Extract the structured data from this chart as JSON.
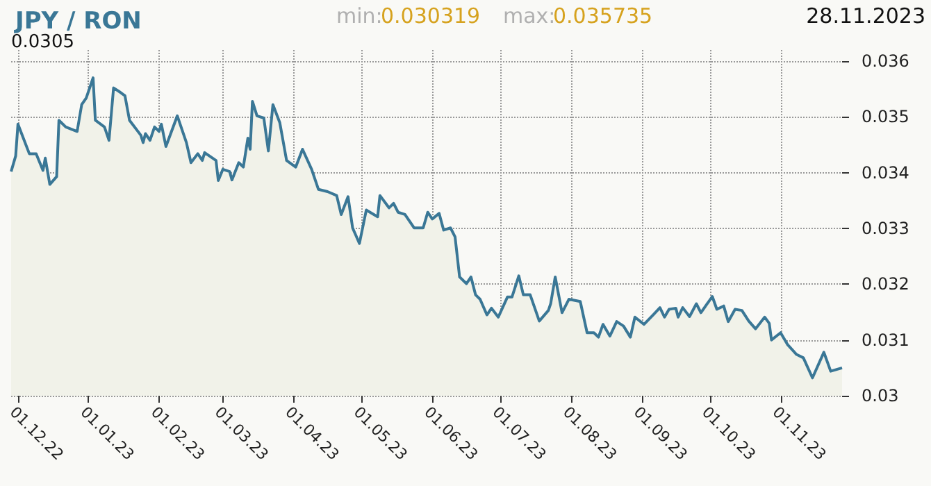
{
  "chart_data": {
    "type": "area",
    "title": "JPY / RON",
    "annotations": [
      "min:",
      "0.030319",
      "max:",
      "0.035735",
      "28.11.2023",
      "0.0305"
    ],
    "x": [
      "2022-11-28",
      "2022-11-30",
      "2022-12-01",
      "2022-12-06",
      "2022-12-09",
      "2022-12-12",
      "2022-12-13",
      "2022-12-15",
      "2022-12-18",
      "2022-12-19",
      "2022-12-22",
      "2022-12-27",
      "2022-12-29",
      "2022-12-31",
      "2023-01-03",
      "2023-01-04",
      "2023-01-08",
      "2023-01-10",
      "2023-01-12",
      "2023-01-15",
      "2023-01-17",
      "2023-01-19",
      "2023-01-24",
      "2023-01-25",
      "2023-01-26",
      "2023-01-28",
      "2023-01-30",
      "2023-02-01",
      "2023-02-02",
      "2023-02-04",
      "2023-02-09",
      "2023-02-13",
      "2023-02-15",
      "2023-02-18",
      "2023-02-20",
      "2023-02-21",
      "2023-02-26",
      "2023-02-27",
      "2023-03-01",
      "2023-03-04",
      "2023-03-05",
      "2023-03-08",
      "2023-03-10",
      "2023-03-12",
      "2023-03-13",
      "2023-03-14",
      "2023-03-16",
      "2023-03-19",
      "2023-03-21",
      "2023-03-23",
      "2023-03-26",
      "2023-03-29",
      "2023-04-02",
      "2023-04-05",
      "2023-04-09",
      "2023-04-12",
      "2023-04-16",
      "2023-04-20",
      "2023-04-22",
      "2023-04-25",
      "2023-04-27",
      "2023-04-30",
      "2023-05-03",
      "2023-05-08",
      "2023-05-09",
      "2023-05-13",
      "2023-05-15",
      "2023-05-17",
      "2023-05-20",
      "2023-05-24",
      "2023-05-28",
      "2023-05-30",
      "2023-06-01",
      "2023-06-04",
      "2023-06-06",
      "2023-06-09",
      "2023-06-11",
      "2023-06-13",
      "2023-06-16",
      "2023-06-18",
      "2023-06-20",
      "2023-06-22",
      "2023-06-25",
      "2023-06-27",
      "2023-06-30",
      "2023-07-04",
      "2023-07-06",
      "2023-07-09",
      "2023-07-11",
      "2023-07-14",
      "2023-07-18",
      "2023-07-22",
      "2023-07-23",
      "2023-07-25",
      "2023-07-28",
      "2023-07-31",
      "2023-08-05",
      "2023-08-08",
      "2023-08-11",
      "2023-08-13",
      "2023-08-15",
      "2023-08-18",
      "2023-08-21",
      "2023-08-24",
      "2023-08-27",
      "2023-08-29",
      "2023-09-02",
      "2023-09-06",
      "2023-09-09",
      "2023-09-11",
      "2023-09-13",
      "2023-09-16",
      "2023-09-17",
      "2023-09-19",
      "2023-09-22",
      "2023-09-25",
      "2023-09-27",
      "2023-10-02",
      "2023-10-04",
      "2023-10-07",
      "2023-10-09",
      "2023-10-12",
      "2023-10-15",
      "2023-10-18",
      "2023-10-21",
      "2023-10-25",
      "2023-10-27",
      "2023-10-28",
      "2023-11-01",
      "2023-11-04",
      "2023-11-08",
      "2023-11-11",
      "2023-11-15",
      "2023-11-20",
      "2023-11-23",
      "2023-11-28"
    ],
    "series": [
      {
        "color": "#3a7796",
        "values": [
          0.03402,
          0.0343,
          0.03487,
          0.03434,
          0.03434,
          0.03404,
          0.03426,
          0.03379,
          0.03393,
          0.03494,
          0.03482,
          0.03474,
          0.03522,
          0.03534,
          0.0357,
          0.03494,
          0.03482,
          0.03458,
          0.03552,
          0.03544,
          0.03538,
          0.03494,
          0.03467,
          0.03454,
          0.0347,
          0.03458,
          0.03482,
          0.03474,
          0.03487,
          0.03447,
          0.03502,
          0.03454,
          0.03418,
          0.03434,
          0.03422,
          0.03436,
          0.03422,
          0.03386,
          0.03406,
          0.03402,
          0.03387,
          0.03418,
          0.0341,
          0.03462,
          0.03442,
          0.03528,
          0.03502,
          0.03498,
          0.03439,
          0.03522,
          0.0349,
          0.03422,
          0.0341,
          0.03442,
          0.03406,
          0.0337,
          0.03366,
          0.03359,
          0.03325,
          0.03357,
          0.03301,
          0.03273,
          0.03333,
          0.03321,
          0.03359,
          0.03337,
          0.03345,
          0.03329,
          0.03325,
          0.03301,
          0.03301,
          0.03329,
          0.03317,
          0.03327,
          0.03297,
          0.03301,
          0.03285,
          0.03213,
          0.03201,
          0.03213,
          0.03181,
          0.03173,
          0.03145,
          0.03157,
          0.03141,
          0.03177,
          0.03177,
          0.03215,
          0.03181,
          0.03181,
          0.03134,
          0.03153,
          0.03165,
          0.03213,
          0.03149,
          0.03173,
          0.03169,
          0.03113,
          0.03113,
          0.03105,
          0.03128,
          0.03107,
          0.03133,
          0.03125,
          0.03105,
          0.03141,
          0.03128,
          0.03145,
          0.03158,
          0.03141,
          0.03155,
          0.03157,
          0.03141,
          0.03158,
          0.03142,
          0.03165,
          0.03149,
          0.03178,
          0.03155,
          0.03161,
          0.03133,
          0.03155,
          0.03153,
          0.03134,
          0.0312,
          0.03141,
          0.0313,
          0.031,
          0.03113,
          0.03092,
          0.03074,
          0.03068,
          0.03032,
          0.03078,
          0.03044,
          0.0305
        ]
      }
    ],
    "xlim": [
      "2022-11-28",
      "2023-11-28"
    ],
    "xticks": [
      {
        "value": "2022-12-01",
        "label": "01.12.22"
      },
      {
        "value": "2023-01-01",
        "label": "01.01.23"
      },
      {
        "value": "2023-02-01",
        "label": "01.02.23"
      },
      {
        "value": "2023-03-01",
        "label": "01.03.23"
      },
      {
        "value": "2023-04-01",
        "label": "01.04.23"
      },
      {
        "value": "2023-05-01",
        "label": "01.05.23"
      },
      {
        "value": "2023-06-01",
        "label": "01.06.23"
      },
      {
        "value": "2023-07-01",
        "label": "01.07.23"
      },
      {
        "value": "2023-08-01",
        "label": "01.08.23"
      },
      {
        "value": "2023-09-01",
        "label": "01.09.23"
      },
      {
        "value": "2023-10-01",
        "label": "01.10.23"
      },
      {
        "value": "2023-11-01",
        "label": "01.11.23"
      }
    ],
    "ylim": [
      0.03,
      0.0362
    ],
    "yticks": [
      0.03,
      0.031,
      0.032,
      0.033,
      0.034,
      0.035,
      0.036
    ],
    "grid": true
  }
}
